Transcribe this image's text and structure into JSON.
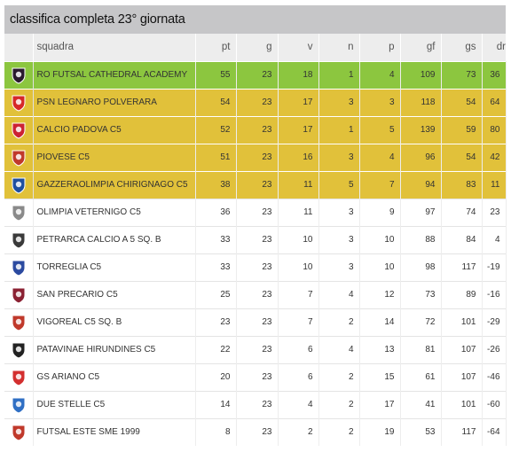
{
  "title": "classifica completa 23° giornata",
  "columns": [
    "squadra",
    "pt",
    "g",
    "v",
    "n",
    "p",
    "gf",
    "gs",
    "dr"
  ],
  "rows": [
    {
      "team": "RO FUTSAL CATHEDRAL ACADEMY",
      "pt": "55",
      "g": "23",
      "v": "18",
      "n": "1",
      "p": "4",
      "gf": "109",
      "gs": "73",
      "dr": "36",
      "highlight": "green",
      "logo_icon": "ro-futsal-logo-icon",
      "logo_color": "#2a1a2e"
    },
    {
      "team": "PSN LEGNARO POLVERARA",
      "pt": "54",
      "g": "23",
      "v": "17",
      "n": "3",
      "p": "3",
      "gf": "118",
      "gs": "54",
      "dr": "64",
      "highlight": "yellow",
      "logo_icon": "psn-legnaro-logo-icon",
      "logo_color": "#d62828"
    },
    {
      "team": "CALCIO PADOVA C5",
      "pt": "52",
      "g": "23",
      "v": "17",
      "n": "1",
      "p": "5",
      "gf": "139",
      "gs": "59",
      "dr": "80",
      "highlight": "yellow",
      "logo_icon": "calcio-padova-logo-icon",
      "logo_color": "#cc2233"
    },
    {
      "team": "PIOVESE C5",
      "pt": "51",
      "g": "23",
      "v": "16",
      "n": "3",
      "p": "4",
      "gf": "96",
      "gs": "54",
      "dr": "42",
      "highlight": "yellow",
      "logo_icon": "piovese-logo-icon",
      "logo_color": "#c0392b"
    },
    {
      "team": "GAZZERAOLIMPIA CHIRIGNAGO C5",
      "pt": "38",
      "g": "23",
      "v": "11",
      "n": "5",
      "p": "7",
      "gf": "94",
      "gs": "83",
      "dr": "11",
      "highlight": "yellow",
      "logo_icon": "gazzera-logo-icon",
      "logo_color": "#1f4fa0"
    },
    {
      "team": "OLIMPIA VETERNIGO C5",
      "pt": "36",
      "g": "23",
      "v": "11",
      "n": "3",
      "p": "9",
      "gf": "97",
      "gs": "74",
      "dr": "23",
      "highlight": "white",
      "logo_icon": "olimpia-veternigo-logo-icon",
      "logo_color": "#8a8a8a"
    },
    {
      "team": "PETRARCA CALCIO A 5 Sq. B",
      "pt": "33",
      "g": "23",
      "v": "10",
      "n": "3",
      "p": "10",
      "gf": "88",
      "gs": "84",
      "dr": "4",
      "highlight": "white",
      "logo_icon": "petrarca-logo-icon",
      "logo_color": "#3a3a3a"
    },
    {
      "team": "TORREGLIA C5",
      "pt": "33",
      "g": "23",
      "v": "10",
      "n": "3",
      "p": "10",
      "gf": "98",
      "gs": "117",
      "dr": "-19",
      "highlight": "white",
      "logo_icon": "torreglia-logo-icon",
      "logo_color": "#2b4aa0"
    },
    {
      "team": "SAN PRECARIO C5",
      "pt": "25",
      "g": "23",
      "v": "7",
      "n": "4",
      "p": "12",
      "gf": "73",
      "gs": "89",
      "dr": "-16",
      "highlight": "white",
      "logo_icon": "san-precario-logo-icon",
      "logo_color": "#8b2233"
    },
    {
      "team": "VIGOREAL C5 Sq. B",
      "pt": "23",
      "g": "23",
      "v": "7",
      "n": "2",
      "p": "14",
      "gf": "72",
      "gs": "101",
      "dr": "-29",
      "highlight": "white",
      "logo_icon": "vigoreal-logo-icon",
      "logo_color": "#c0392b"
    },
    {
      "team": "PATAVINAE HIRUNDINES C5",
      "pt": "22",
      "g": "23",
      "v": "6",
      "n": "4",
      "p": "13",
      "gf": "81",
      "gs": "107",
      "dr": "-26",
      "highlight": "white",
      "logo_icon": "patavinae-logo-icon",
      "logo_color": "#222222"
    },
    {
      "team": "GS ARIANO C5",
      "pt": "20",
      "g": "23",
      "v": "6",
      "n": "2",
      "p": "15",
      "gf": "61",
      "gs": "107",
      "dr": "-46",
      "highlight": "white",
      "logo_icon": "gs-ariano-logo-icon",
      "logo_color": "#d32f2f"
    },
    {
      "team": "DUE STELLE C5",
      "pt": "14",
      "g": "23",
      "v": "4",
      "n": "2",
      "p": "17",
      "gf": "41",
      "gs": "101",
      "dr": "-60",
      "highlight": "white",
      "logo_icon": "due-stelle-logo-icon",
      "logo_color": "#2f6fc4"
    },
    {
      "team": "FUTSAL ESTE SME 1999",
      "pt": "8",
      "g": "23",
      "v": "2",
      "n": "2",
      "p": "19",
      "gf": "53",
      "gs": "117",
      "dr": "-64",
      "highlight": "white",
      "logo_icon": "futsal-este-logo-icon",
      "logo_color": "#c0392b"
    }
  ]
}
